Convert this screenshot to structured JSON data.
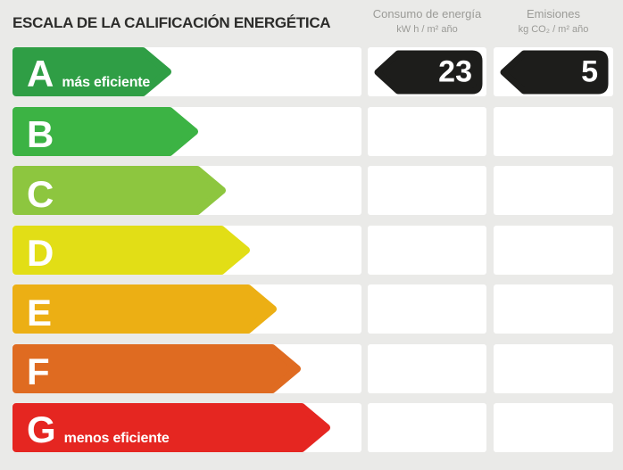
{
  "header": {
    "title": "ESCALA DE LA CALIFICACIÓN ENERGÉTICA",
    "consumption_col": {
      "label": "Consumo de energía",
      "unit": "kW h / m² año"
    },
    "emissions_col": {
      "label": "Emisiones",
      "unit": "kg CO₂ / m² año"
    }
  },
  "scale": {
    "rows": [
      {
        "letter": "A",
        "suffix": "más eficiente",
        "color": "#2f9e45",
        "arrow_width": 178,
        "consumption": "23",
        "emissions": "5"
      },
      {
        "letter": "B",
        "suffix": "",
        "color": "#3cb344",
        "arrow_width": 208,
        "consumption": null,
        "emissions": null
      },
      {
        "letter": "C",
        "suffix": "",
        "color": "#8dc63f",
        "arrow_width": 239,
        "consumption": null,
        "emissions": null
      },
      {
        "letter": "D",
        "suffix": "",
        "color": "#e2de16",
        "arrow_width": 266,
        "consumption": null,
        "emissions": null
      },
      {
        "letter": "E",
        "suffix": "",
        "color": "#ecaf14",
        "arrow_width": 296,
        "consumption": null,
        "emissions": null
      },
      {
        "letter": "F",
        "suffix": "",
        "color": "#df6b21",
        "arrow_width": 323,
        "consumption": null,
        "emissions": null
      },
      {
        "letter": "G",
        "suffix": "menos eficiente",
        "color": "#e52621",
        "arrow_width": 356,
        "consumption": null,
        "emissions": null
      }
    ],
    "badge_color": "#1d1d1b"
  },
  "colors": {
    "background": "#eaeae8",
    "cell": "#ffffff",
    "title_text": "#2d2d2b",
    "header_text": "#9b9b97",
    "bar_label_text": "#ffffff"
  },
  "chart_data": {
    "type": "bar",
    "title": "ESCALA DE LA CALIFICACIÓN ENERGÉTICA",
    "categories": [
      "A",
      "B",
      "C",
      "D",
      "E",
      "F",
      "G"
    ],
    "values": [
      178,
      208,
      239,
      266,
      296,
      323,
      356
    ],
    "bar_colors": [
      "#2f9e45",
      "#3cb344",
      "#8dc63f",
      "#e2de16",
      "#ecaf14",
      "#df6b21",
      "#e52621"
    ],
    "annotations": [
      "A = más eficiente",
      "G = menos eficiente"
    ],
    "columns": [
      {
        "label": "Consumo de energía",
        "unit": "kW h / m² año"
      },
      {
        "label": "Emisiones",
        "unit": "kg CO₂ / m² año"
      }
    ],
    "rating": {
      "letter": "A",
      "consumption": 23,
      "emissions": 5
    },
    "legend_position": "none",
    "grid": false
  }
}
